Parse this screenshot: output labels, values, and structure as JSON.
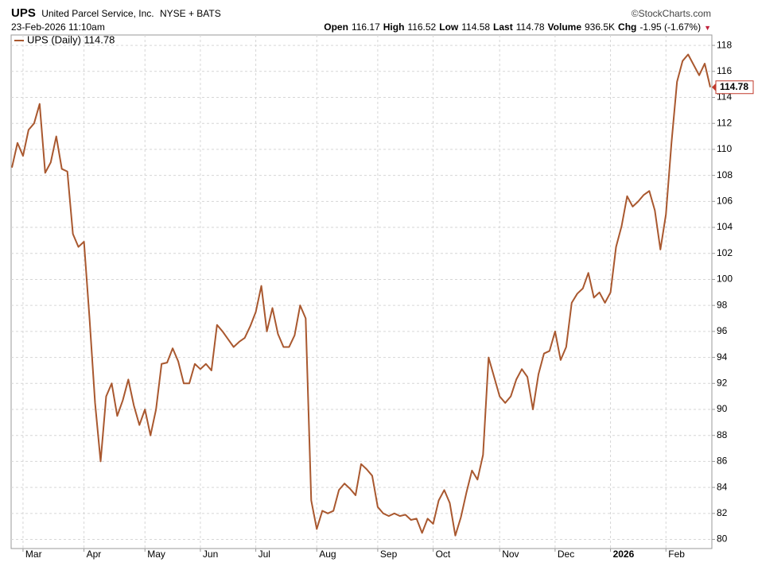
{
  "header": {
    "symbol": "UPS",
    "name": "United Parcel Service, Inc.",
    "exchange": "NYSE + BATS",
    "source": "©StockCharts.com",
    "timestamp": "23-Feb-2026 11:10am",
    "quote": [
      {
        "label": "Open",
        "value": "116.17"
      },
      {
        "label": "High",
        "value": "116.52"
      },
      {
        "label": "Low",
        "value": "114.58"
      },
      {
        "label": "Last",
        "value": "114.78"
      },
      {
        "label": "Volume",
        "value": "936.5K"
      },
      {
        "label": "Chg",
        "value": "-1.95 (-1.67%)"
      }
    ]
  },
  "chart_data": {
    "type": "line",
    "categories": [
      null,
      null,
      "Mar",
      null,
      null,
      null,
      null,
      null,
      null,
      null,
      null,
      null,
      null,
      "Apr",
      null,
      null,
      null,
      null,
      null,
      null,
      null,
      null,
      null,
      null,
      "May",
      null,
      null,
      null,
      null,
      null,
      null,
      null,
      null,
      null,
      "Jun",
      null,
      null,
      null,
      null,
      null,
      null,
      null,
      null,
      null,
      "Jul",
      null,
      null,
      null,
      null,
      null,
      null,
      null,
      null,
      null,
      null,
      "Aug",
      null,
      null,
      null,
      null,
      null,
      null,
      null,
      null,
      null,
      null,
      "Sep",
      null,
      null,
      null,
      null,
      null,
      null,
      null,
      null,
      null,
      "Oct",
      null,
      null,
      null,
      null,
      null,
      null,
      null,
      null,
      null,
      null,
      null,
      "Nov",
      null,
      null,
      null,
      null,
      null,
      null,
      null,
      null,
      null,
      "Dec",
      null,
      null,
      null,
      null,
      null,
      null,
      null,
      null,
      null,
      "2026",
      null,
      null,
      null,
      null,
      null,
      null,
      null,
      null,
      null,
      "Feb",
      null,
      null,
      null,
      null,
      null,
      null,
      null,
      null
    ],
    "series": [
      {
        "name": "UPS (Daily) 114.78",
        "color": "#a9582f",
        "values": [
          108.6,
          110.5,
          109.5,
          111.5,
          112,
          113.5,
          108.2,
          109,
          111,
          108.5,
          108.3,
          103.5,
          102.5,
          102.9,
          97,
          90.5,
          86,
          91,
          92,
          89.5,
          90.7,
          92.3,
          90.3,
          88.8,
          90,
          88,
          90,
          93.5,
          93.6,
          94.7,
          93.7,
          92,
          92,
          93.5,
          93.1,
          93.5,
          93,
          96.5,
          96,
          95.4,
          94.8,
          95.2,
          95.5,
          96.4,
          97.5,
          99.5,
          96,
          97.8,
          95.8,
          94.8,
          94.8,
          95.7,
          98,
          97,
          83,
          80.8,
          82.2,
          82,
          82.2,
          83.8,
          84.3,
          83.9,
          83.4,
          85.8,
          85.4,
          84.9,
          82.5,
          82,
          81.8,
          82,
          81.8,
          81.9,
          81.5,
          81.6,
          80.5,
          81.6,
          81.2,
          83,
          83.8,
          82.8,
          80.3,
          81.7,
          83.6,
          85.3,
          84.6,
          86.5,
          94,
          92.5,
          91,
          90.5,
          91,
          92.3,
          93.1,
          92.5,
          90,
          92.7,
          94.3,
          94.5,
          96,
          93.8,
          94.8,
          98.2,
          98.9,
          99.3,
          100.5,
          98.6,
          99,
          98.2,
          99,
          102.5,
          104.1,
          106.4,
          105.6,
          106,
          106.5,
          106.8,
          105.3,
          102.3,
          105,
          110.5,
          115.2,
          116.8,
          117.3,
          116.5,
          115.7,
          116.6,
          114.78
        ]
      }
    ],
    "ylim": [
      79.3,
      118.8
    ],
    "yticks": [
      80,
      82,
      84,
      86,
      88,
      90,
      92,
      94,
      96,
      98,
      100,
      102,
      104,
      106,
      108,
      110,
      112,
      114,
      116,
      118
    ],
    "grid": true,
    "legend": "top-left"
  }
}
